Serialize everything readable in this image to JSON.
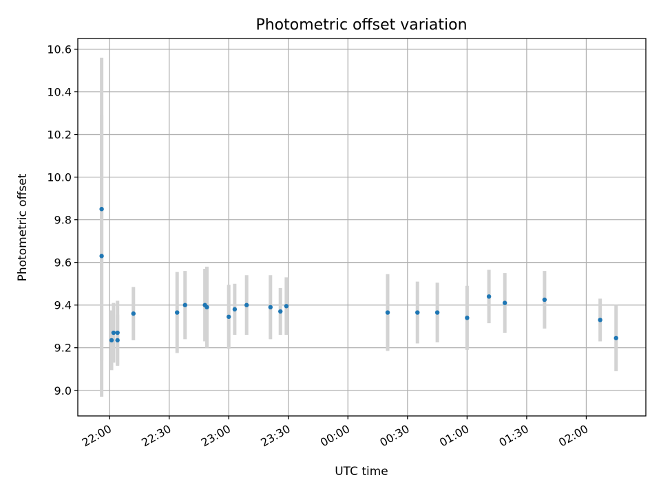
{
  "chart_data": {
    "type": "scatter",
    "title": "Photometric offset variation",
    "xlabel": "UTC time",
    "ylabel": "Photometric offset",
    "x_tick_labels": [
      "22:00",
      "22:30",
      "23:00",
      "23:30",
      "00:00",
      "00:30",
      "01:00",
      "01:30",
      "02:00"
    ],
    "y_tick_labels": [
      "9.0",
      "9.2",
      "9.4",
      "9.6",
      "9.8",
      "10.0",
      "10.2",
      "10.4",
      "10.6"
    ],
    "xlim": [
      "21:44",
      "02:30"
    ],
    "ylim": [
      8.88,
      10.65
    ],
    "grid": true,
    "errorbar_color": "#d3d3d3",
    "point_color": "#1f77b4",
    "points": [
      {
        "time": "21:56",
        "y": 9.85,
        "err": 0.71
      },
      {
        "time": "21:56",
        "y": 9.63,
        "err": 0.66
      },
      {
        "time": "22:01",
        "y": 9.235,
        "err": 0.14
      },
      {
        "time": "22:02",
        "y": 9.27,
        "err": 0.14
      },
      {
        "time": "22:04",
        "y": 9.235,
        "err": 0.12
      },
      {
        "time": "22:04",
        "y": 9.27,
        "err": 0.15
      },
      {
        "time": "22:12",
        "y": 9.36,
        "err": 0.125
      },
      {
        "time": "22:34",
        "y": 9.365,
        "err": 0.19
      },
      {
        "time": "22:38",
        "y": 9.4,
        "err": 0.16
      },
      {
        "time": "22:48",
        "y": 9.4,
        "err": 0.17
      },
      {
        "time": "22:49",
        "y": 9.39,
        "err": 0.19
      },
      {
        "time": "23:00",
        "y": 9.345,
        "err": 0.15
      },
      {
        "time": "23:03",
        "y": 9.38,
        "err": 0.12
      },
      {
        "time": "23:09",
        "y": 9.4,
        "err": 0.14
      },
      {
        "time": "23:21",
        "y": 9.39,
        "err": 0.15
      },
      {
        "time": "23:26",
        "y": 9.37,
        "err": 0.11
      },
      {
        "time": "23:29",
        "y": 9.395,
        "err": 0.135
      },
      {
        "time": "00:20",
        "y": 9.365,
        "err": 0.18
      },
      {
        "time": "00:35",
        "y": 9.365,
        "err": 0.145
      },
      {
        "time": "00:45",
        "y": 9.365,
        "err": 0.14
      },
      {
        "time": "01:00",
        "y": 9.34,
        "err": 0.15
      },
      {
        "time": "01:11",
        "y": 9.44,
        "err": 0.125
      },
      {
        "time": "01:19",
        "y": 9.41,
        "err": 0.14
      },
      {
        "time": "01:39",
        "y": 9.425,
        "err": 0.135
      },
      {
        "time": "02:07",
        "y": 9.33,
        "err": 0.1
      },
      {
        "time": "02:15",
        "y": 9.245,
        "err": 0.155
      }
    ]
  }
}
